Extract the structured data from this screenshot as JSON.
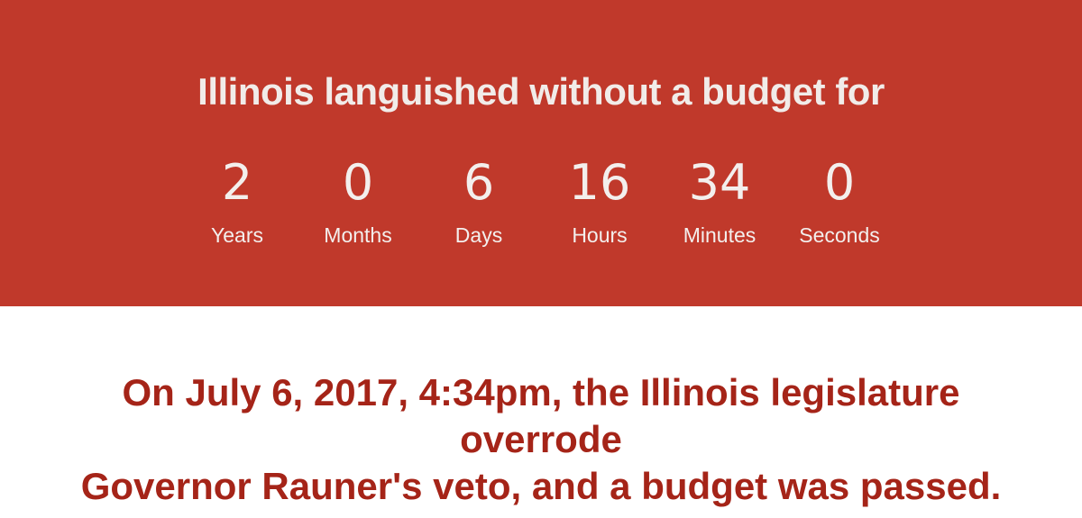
{
  "banner": {
    "headline": "Illinois languished without a budget for",
    "countdown": [
      {
        "value": "2",
        "label": "Years"
      },
      {
        "value": "0",
        "label": "Months"
      },
      {
        "value": "6",
        "label": "Days"
      },
      {
        "value": "16",
        "label": "Hours"
      },
      {
        "value": "34",
        "label": "Minutes"
      },
      {
        "value": "0",
        "label": "Seconds"
      }
    ]
  },
  "statement": {
    "line1": "On July 6, 2017, 4:34pm, the Illinois legislature overrode",
    "line2": "Governor Rauner's veto, and a budget was passed."
  },
  "colors": {
    "banner_background": "#c0392b",
    "banner_text": "#f1ece9",
    "statement_text": "#a52418",
    "page_background": "#ffffff"
  }
}
